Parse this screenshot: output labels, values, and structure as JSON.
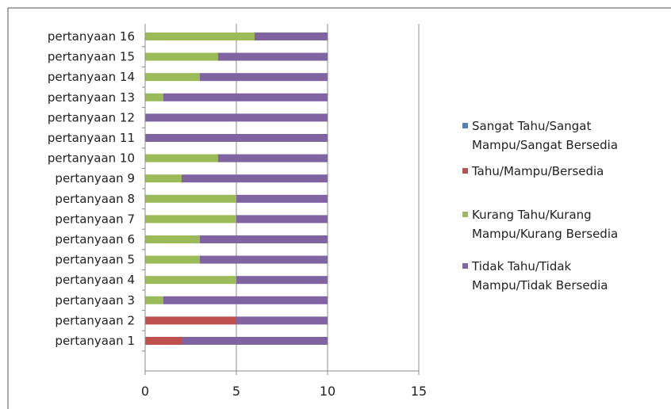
{
  "chart_data": {
    "type": "bar",
    "stacked": true,
    "orientation": "horizontal",
    "categories": [
      "pertanyaan 1",
      "pertanyaan 2",
      "pertanyaan 3",
      "pertanyaan 4",
      "pertanyaan 5",
      "pertanyaan 6",
      "pertanyaan 7",
      "pertanyaan 8",
      "pertanyaan 9",
      "pertanyaan 10",
      "pertanyaan 11",
      "pertanyaan 12",
      "pertanyaan 13",
      "pertanyaan 14",
      "pertanyaan 15",
      "pertanyaan 16"
    ],
    "series": [
      {
        "name": "Sangat Tahu/Sangat Mampu/Sangat Bersedia",
        "legend_lines": [
          "Sangat Tahu/Sangat",
          "Mampu/Sangat Bersedia"
        ],
        "color": "#4f81bd",
        "values": [
          0,
          0,
          0,
          0,
          0,
          0,
          0,
          0,
          0,
          0,
          0,
          0,
          0,
          0,
          0,
          0
        ]
      },
      {
        "name": "Tahu/Mampu/Bersedia",
        "legend_lines": [
          "Tahu/Mampu/Bersedia"
        ],
        "color": "#c0504d",
        "values": [
          2,
          5,
          0,
          0,
          0,
          0,
          0,
          0,
          0,
          0,
          0,
          0,
          0,
          0,
          0,
          0
        ]
      },
      {
        "name": "Kurang Tahu/Kurang Mampu/Kurang Bersedia",
        "legend_lines": [
          "Kurang Tahu/Kurang",
          "Mampu/Kurang Bersedia"
        ],
        "color": "#9bbb59",
        "values": [
          0,
          0,
          1,
          5,
          3,
          3,
          5,
          5,
          2,
          4,
          0,
          0,
          1,
          3,
          4,
          6
        ]
      },
      {
        "name": "Tidak Tahu/Tidak Mampu/Tidak Bersedia",
        "legend_lines": [
          "Tidak Tahu/Tidak",
          "Mampu/Tidak Bersedia"
        ],
        "color": "#8064a2",
        "values": [
          8,
          5,
          9,
          5,
          7,
          7,
          5,
          5,
          8,
          6,
          10,
          10,
          9,
          7,
          6,
          4
        ]
      }
    ],
    "xlim": [
      0,
      15
    ],
    "xticks": [
      0,
      5,
      10,
      15
    ],
    "grid": "vertical",
    "legend_position": "right",
    "title": "",
    "xlabel": "",
    "ylabel": ""
  }
}
